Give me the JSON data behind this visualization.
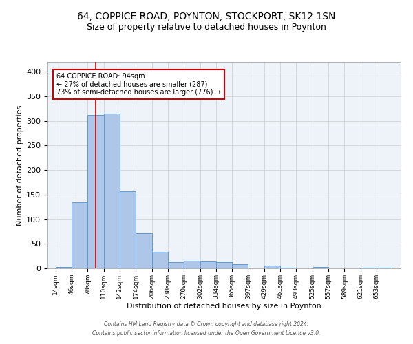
{
  "title1": "64, COPPICE ROAD, POYNTON, STOCKPORT, SK12 1SN",
  "title2": "Size of property relative to detached houses in Poynton",
  "xlabel": "Distribution of detached houses by size in Poynton",
  "ylabel": "Number of detached properties",
  "categories": [
    "14sqm",
    "46sqm",
    "78sqm",
    "110sqm",
    "142sqm",
    "174sqm",
    "206sqm",
    "238sqm",
    "270sqm",
    "302sqm",
    "334sqm",
    "365sqm",
    "397sqm",
    "429sqm",
    "461sqm",
    "493sqm",
    "525sqm",
    "557sqm",
    "589sqm",
    "621sqm",
    "653sqm"
  ],
  "values": [
    3,
    135,
    312,
    315,
    157,
    72,
    34,
    12,
    15,
    14,
    12,
    8,
    0,
    5,
    2,
    0,
    3,
    0,
    0,
    2,
    2
  ],
  "bar_color": "#aec6e8",
  "bar_edge_color": "#5b9bd5",
  "bg_color": "#eef2f9",
  "grid_color": "#cccccc",
  "vline_x": 94,
  "vline_color": "#cc0000",
  "annotation_text": "64 COPPICE ROAD: 94sqm\n← 27% of detached houses are smaller (287)\n73% of semi-detached houses are larger (776) →",
  "annotation_box_color": "white",
  "annotation_box_edge_color": "#cc0000",
  "footer_line1": "Contains HM Land Registry data © Crown copyright and database right 2024.",
  "footer_line2": "Contains public sector information licensed under the Open Government Licence v3.0.",
  "ylim": [
    0,
    420
  ],
  "yticks": [
    0,
    50,
    100,
    150,
    200,
    250,
    300,
    350,
    400
  ]
}
